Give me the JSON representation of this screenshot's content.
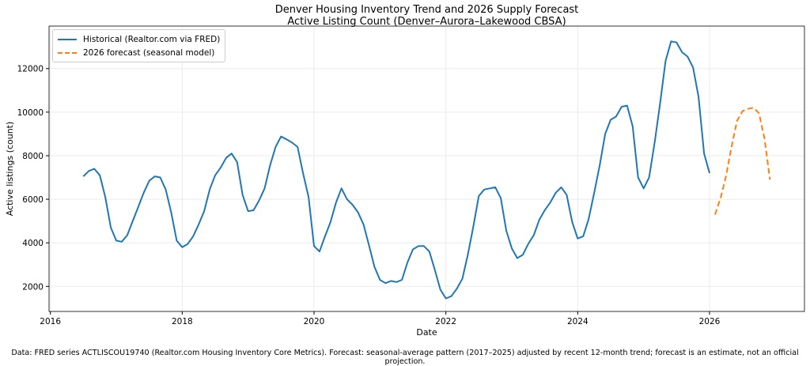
{
  "chart_data": {
    "type": "line",
    "title": "Denver Housing Inventory Trend and 2026 Supply Forecast",
    "subtitle": "Active Listing Count (Denver–Aurora–Lakewood CBSA)",
    "xlabel": "Date",
    "ylabel": "Active listings (count)",
    "xlim": [
      2015.98,
      2027.44
    ],
    "ylim": [
      850,
      13950
    ],
    "x_ticks": [
      "2016",
      "2018",
      "2020",
      "2022",
      "2024",
      "2026"
    ],
    "y_ticks": [
      "2000",
      "4000",
      "6000",
      "8000",
      "10000",
      "12000"
    ],
    "grid": true,
    "legend_position": "top-left",
    "series": [
      {
        "name": "Historical (Realtor.com via FRED)",
        "color": "#1f77b4",
        "style": "solid",
        "start": "2016-07",
        "values": [
          7050,
          7300,
          7400,
          7100,
          6100,
          4700,
          4100,
          4050,
          4350,
          5000,
          5650,
          6300,
          6850,
          7050,
          7000,
          6450,
          5400,
          4100,
          3800,
          3950,
          4300,
          4850,
          5450,
          6450,
          7100,
          7450,
          7900,
          8100,
          7700,
          6200,
          5450,
          5500,
          5950,
          6500,
          7550,
          8400,
          8880,
          8750,
          8600,
          8400,
          7200,
          6100,
          3850,
          3600,
          4300,
          4950,
          5850,
          6500,
          6000,
          5750,
          5400,
          4850,
          3900,
          2900,
          2300,
          2150,
          2250,
          2200,
          2300,
          3100,
          3700,
          3850,
          3850,
          3600,
          2750,
          1850,
          1450,
          1550,
          1900,
          2350,
          3450,
          4750,
          6150,
          6450,
          6500,
          6550,
          6050,
          4550,
          3750,
          3300,
          3450,
          3950,
          4350,
          5050,
          5500,
          5850,
          6300,
          6550,
          6200,
          4950,
          4200,
          4300,
          5100,
          6300,
          7550,
          9000,
          9650,
          9800,
          10250,
          10300,
          9350,
          7000,
          6500,
          7000,
          8600,
          10400,
          12350,
          13250,
          13200,
          12750,
          12550,
          12050,
          10700,
          8100,
          7200
        ]
      },
      {
        "name": "2026 forecast (seasonal model)",
        "color": "#ff7f0e",
        "style": "dashed",
        "start": "2026-02",
        "values": [
          5300,
          6050,
          7050,
          8400,
          9600,
          10050,
          10150,
          10200,
          9950,
          8800,
          6900
        ]
      }
    ]
  },
  "footer": "Data: FRED series ACTLISCOU19740 (Realtor.com Housing Inventory Core Metrics). Forecast: seasonal-average pattern (2017–2025) adjusted by recent 12-month trend; forecast is an estimate, not an official projection."
}
